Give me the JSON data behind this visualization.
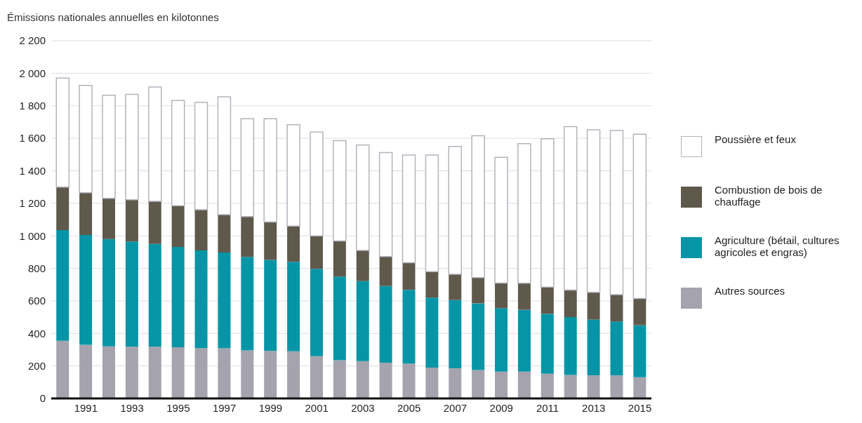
{
  "chart_data": {
    "type": "bar",
    "ylabel": "Émissions nationales annuelles en kilotonnes",
    "stacked": true,
    "grid": "y",
    "legend": "right",
    "categories": [
      null,
      "1991",
      null,
      "1993",
      null,
      "1995",
      null,
      "1997",
      null,
      "1999",
      null,
      "2001",
      null,
      "2003",
      null,
      "2005",
      null,
      "2007",
      null,
      "2009",
      null,
      "2011",
      null,
      "2013",
      null,
      "2015"
    ],
    "ylim": [
      0,
      2200
    ],
    "yticks": [
      0,
      200,
      400,
      600,
      800,
      {
        "value": 1000,
        "label": "1 000"
      },
      {
        "value": 1200,
        "label": "1 200"
      },
      {
        "value": 1400,
        "label": "1 400"
      },
      {
        "value": 1600,
        "label": "1 600"
      },
      {
        "value": 1800,
        "label": "1 800"
      },
      {
        "value": 2000,
        "label": "2 000"
      },
      {
        "value": 2200,
        "label": "2 200"
      }
    ],
    "series": [
      {
        "name": "Autres sources",
        "color": "#a4a3ae",
        "values": [
          355,
          330,
          320,
          318,
          318,
          315,
          310,
          308,
          296,
          292,
          290,
          260,
          235,
          230,
          220,
          215,
          190,
          185,
          175,
          165,
          165,
          152,
          145,
          142,
          142,
          130
        ]
      },
      {
        "name": "Agriculture (bétail, cultures agricoles et engras)",
        "color": "#0595a6",
        "values": [
          680,
          675,
          660,
          647,
          632,
          617,
          600,
          589,
          574,
          560,
          550,
          537,
          515,
          492,
          472,
          453,
          430,
          420,
          410,
          390,
          380,
          368,
          355,
          343,
          331,
          320
        ]
      },
      {
        "name": "Combustion de bois de chauffage",
        "color": "#5f594c",
        "values": [
          265,
          260,
          250,
          257,
          262,
          253,
          250,
          233,
          248,
          233,
          220,
          203,
          218,
          188,
          180,
          167,
          160,
          158,
          158,
          155,
          163,
          165,
          167,
          167,
          165,
          165
        ]
      },
      {
        "name": "Poussière et feux",
        "color": "#ffffff",
        "values": [
          670,
          660,
          635,
          648,
          703,
          647,
          660,
          725,
          602,
          635,
          623,
          638,
          617,
          648,
          640,
          662,
          717,
          787,
          872,
          773,
          859,
          912,
          1005,
          1000,
          1010,
          1010
        ]
      }
    ]
  }
}
